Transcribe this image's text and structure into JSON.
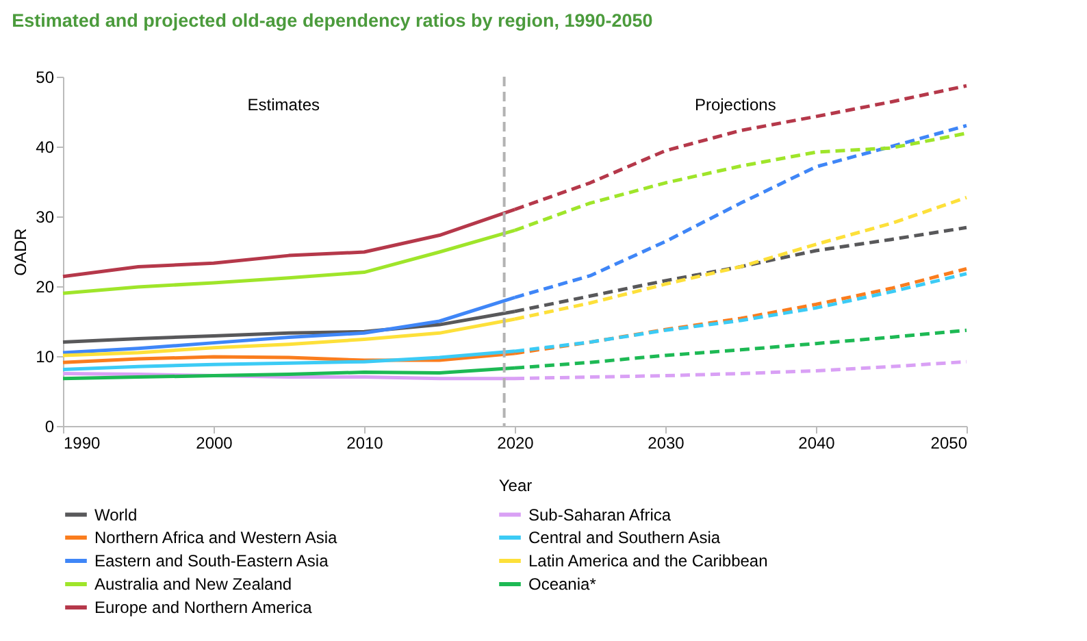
{
  "chart_data": {
    "type": "line",
    "title": "Estimated and projected old-age dependency ratios by region, 1990-2050",
    "xlabel": "Year",
    "ylabel": "OADR",
    "xlim": [
      1990,
      2050
    ],
    "xticks": [
      1990,
      2000,
      2010,
      2020,
      2030,
      2040,
      2050
    ],
    "ylim": [
      0,
      50
    ],
    "yticks": [
      0,
      10,
      20,
      30,
      40,
      50
    ],
    "grid": false,
    "legend": "bottom",
    "marker": "none",
    "annotations": [
      "Estimates",
      "Projections"
    ],
    "ref_lines": [
      {
        "axis": "x",
        "value": 2019.3,
        "label": null,
        "color": "#b3b3b3",
        "line_style": "dashed"
      }
    ],
    "series": [
      {
        "name": "World",
        "color": "#58585a",
        "line_style": "solid",
        "x": [
          1990,
          1995,
          2000,
          2005,
          2010,
          2015,
          2020
        ],
        "values": [
          12.0,
          12.5,
          12.9,
          13.3,
          13.5,
          14.5,
          16.4
        ]
      },
      {
        "name": "Northern Africa and Western Asia",
        "color": "#fa7d1e",
        "line_style": "solid",
        "x": [
          1990,
          1995,
          2000,
          2005,
          2010,
          2015,
          2020
        ],
        "values": [
          9.1,
          9.6,
          9.9,
          9.8,
          9.4,
          9.4,
          10.4
        ]
      },
      {
        "name": "Eastern and South-Eastern Asia",
        "color": "#3f86f7",
        "line_style": "solid",
        "x": [
          1990,
          1995,
          2000,
          2005,
          2010,
          2015,
          2020
        ],
        "values": [
          10.5,
          11.1,
          11.9,
          12.7,
          13.3,
          15.0,
          18.4
        ]
      },
      {
        "name": "Australia and New Zealand",
        "color": "#9fe52a",
        "line_style": "solid",
        "x": [
          1990,
          1995,
          2000,
          2005,
          2010,
          2015,
          2020
        ],
        "values": [
          19.0,
          19.9,
          20.5,
          21.2,
          22.0,
          24.9,
          28.0
        ]
      },
      {
        "name": "Europe and Northern America",
        "color": "#b5384a",
        "line_style": "solid",
        "x": [
          1990,
          1995,
          2000,
          2005,
          2010,
          2015,
          2020
        ],
        "values": [
          21.4,
          22.8,
          23.3,
          24.4,
          24.9,
          27.3,
          31.0
        ]
      },
      {
        "name": "Sub-Saharan Africa",
        "color": "#d9a0f5",
        "line_style": "solid",
        "x": [
          1990,
          1995,
          2000,
          2005,
          2010,
          2015,
          2020
        ],
        "values": [
          7.5,
          7.4,
          7.2,
          7.0,
          7.0,
          6.8,
          6.8
        ]
      },
      {
        "name": "Central and Southern Asia",
        "color": "#3ccbf5",
        "line_style": "solid",
        "x": [
          1990,
          1995,
          2000,
          2005,
          2010,
          2015,
          2020
        ],
        "values": [
          8.1,
          8.5,
          8.8,
          9.0,
          9.2,
          9.8,
          10.7
        ]
      },
      {
        "name": "Latin America and the Caribbean",
        "color": "#fde03a",
        "line_style": "solid",
        "x": [
          1990,
          1995,
          2000,
          2005,
          2010,
          2015,
          2020
        ],
        "values": [
          10.1,
          10.5,
          11.2,
          11.7,
          12.4,
          13.3,
          15.3
        ]
      },
      {
        "name": "Oceania*",
        "color": "#1db954",
        "line_style": "solid",
        "x": [
          1990,
          1995,
          2000,
          2005,
          2010,
          2015,
          2020
        ],
        "values": [
          6.8,
          7.0,
          7.2,
          7.4,
          7.7,
          7.6,
          8.3
        ]
      },
      {
        "color": "#58585a",
        "line_style": "dashed",
        "x": [
          2020,
          2025,
          2030,
          2035,
          2040,
          2045,
          2050
        ],
        "values": [
          16.4,
          18.6,
          20.8,
          22.8,
          25.1,
          26.7,
          28.4
        ]
      },
      {
        "color": "#fa7d1e",
        "line_style": "dashed",
        "x": [
          2020,
          2025,
          2030,
          2035,
          2040,
          2045,
          2050
        ],
        "values": [
          10.4,
          12.0,
          13.8,
          15.4,
          17.4,
          19.7,
          22.5
        ]
      },
      {
        "color": "#3f86f7",
        "line_style": "dashed",
        "x": [
          2020,
          2025,
          2030,
          2035,
          2040,
          2045,
          2050
        ],
        "values": [
          18.4,
          21.5,
          26.4,
          31.9,
          37.1,
          40.0,
          43.0
        ]
      },
      {
        "color": "#9fe52a",
        "line_style": "dashed",
        "x": [
          2020,
          2025,
          2030,
          2035,
          2040,
          2045,
          2050
        ],
        "values": [
          28.0,
          31.9,
          34.8,
          37.2,
          39.2,
          39.8,
          41.9
        ]
      },
      {
        "color": "#b5384a",
        "line_style": "dashed",
        "x": [
          2020,
          2025,
          2030,
          2035,
          2040,
          2045,
          2050
        ],
        "values": [
          31.0,
          34.8,
          39.4,
          42.3,
          44.3,
          46.4,
          48.7
        ]
      },
      {
        "color": "#d9a0f5",
        "line_style": "dashed",
        "x": [
          2020,
          2025,
          2030,
          2035,
          2040,
          2045,
          2050
        ],
        "values": [
          6.8,
          7.0,
          7.2,
          7.5,
          7.9,
          8.5,
          9.2
        ]
      },
      {
        "color": "#3ccbf5",
        "line_style": "dashed",
        "x": [
          2020,
          2025,
          2030,
          2035,
          2040,
          2045,
          2050
        ],
        "values": [
          10.7,
          12.0,
          13.7,
          15.1,
          16.9,
          19.2,
          21.8
        ]
      },
      {
        "color": "#fde03a",
        "line_style": "dashed",
        "x": [
          2020,
          2025,
          2030,
          2035,
          2040,
          2045,
          2050
        ],
        "values": [
          15.3,
          17.6,
          20.3,
          22.8,
          26.0,
          29.0,
          32.7
        ]
      },
      {
        "color": "#1db954",
        "line_style": "dashed",
        "x": [
          2020,
          2025,
          2030,
          2035,
          2040,
          2045,
          2050
        ],
        "values": [
          8.3,
          9.1,
          10.1,
          10.9,
          11.8,
          12.7,
          13.7
        ]
      }
    ]
  }
}
